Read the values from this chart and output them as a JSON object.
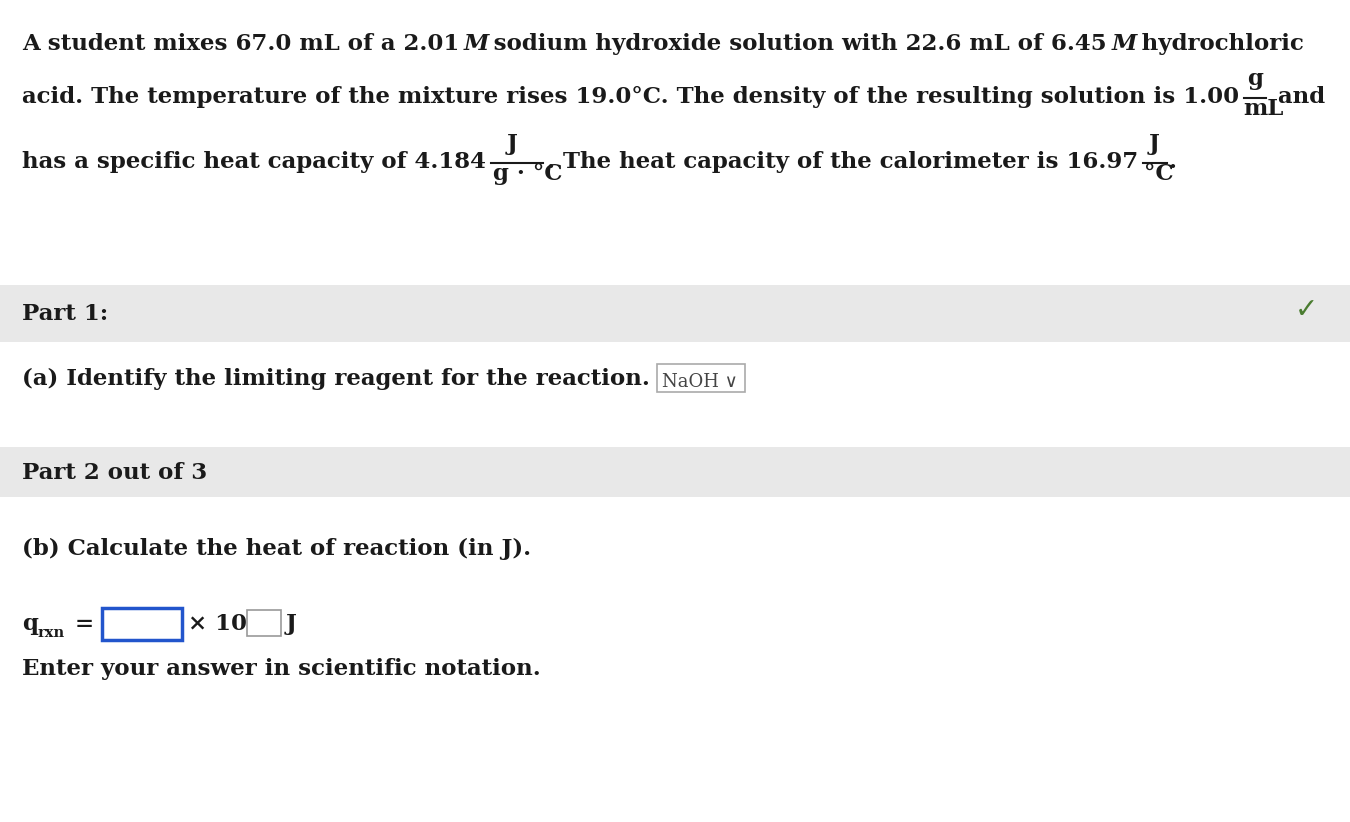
{
  "bg_color": "#ffffff",
  "gray_band_color": "#e8e8e8",
  "text_color": "#1a1a1a",
  "blue_box_color": "#2255cc",
  "checkmark_color": "#4a7c30",
  "part1_label": "Part 1:",
  "part_a_label": "(a) Identify the limiting reagent for the reaction.",
  "naoh_box_text": "NaOH ∨",
  "part2_label": "Part 2 out of 3",
  "part_b_label": "(b) Calculate the heat of reaction (in J).",
  "enter_label": "Enter your answer in scientific notation.",
  "fs_main": 16.5,
  "fs_small": 11
}
